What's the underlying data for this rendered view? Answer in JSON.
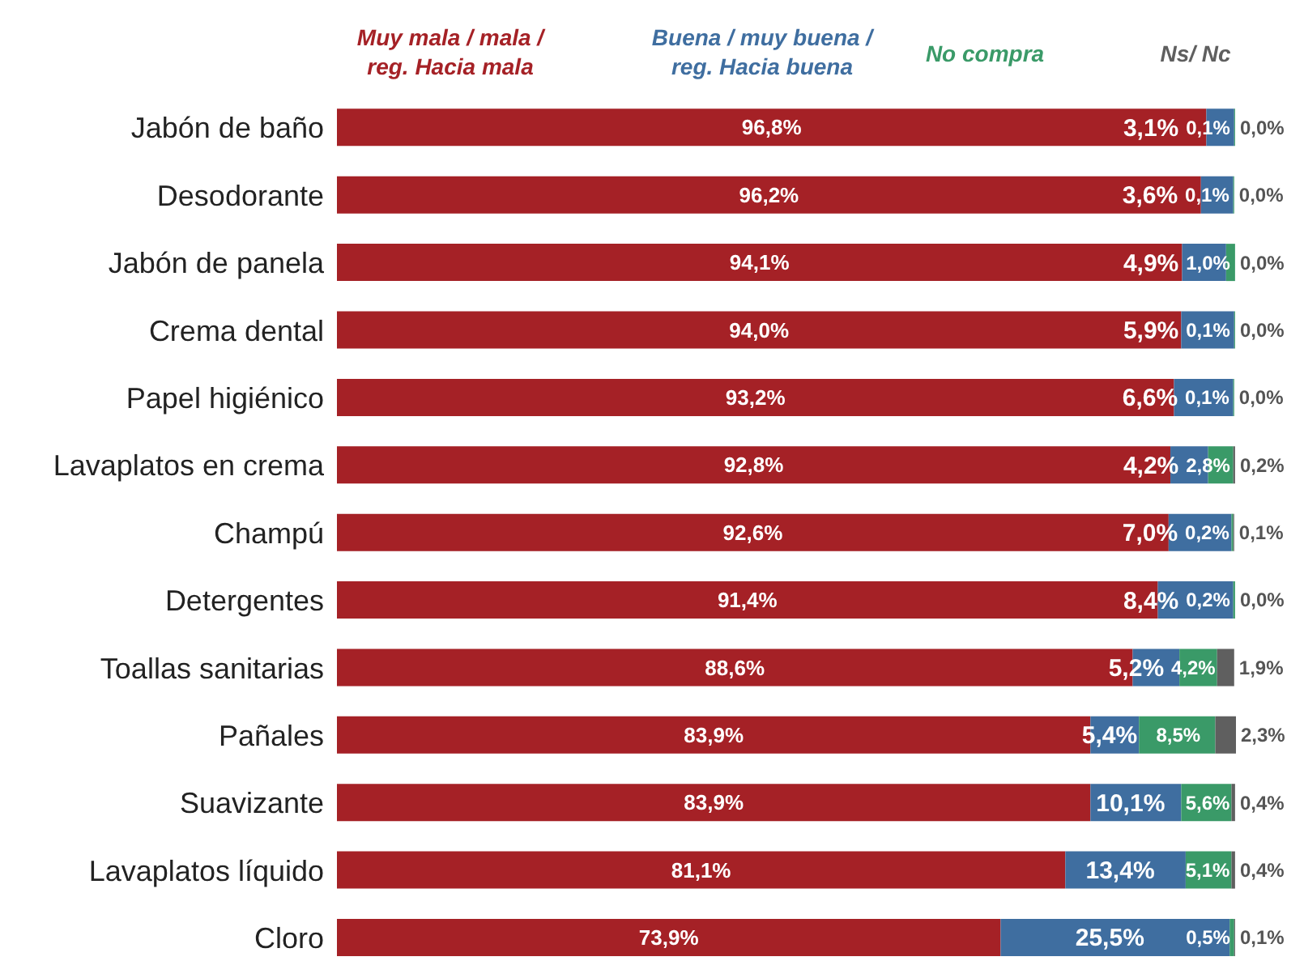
{
  "chart_data": {
    "type": "bar",
    "orientation": "horizontal",
    "stacked": true,
    "legend": "top",
    "tick_labels": "y",
    "categories": [
      "Jabón de baño",
      "Desodorante",
      "Jabón de panela",
      "Crema dental",
      "Papel higiénico",
      "Lavaplatos en crema",
      "Champú",
      "Detergentes",
      "Toallas sanitarias",
      "Pañales",
      "Suavizante",
      "Lavaplatos líquido",
      "Cloro"
    ],
    "series": [
      {
        "name": "Muy mala / mala / reg. Hacia mala",
        "color": "#a52126",
        "values": [
          96.8,
          96.2,
          94.1,
          94.0,
          93.2,
          92.8,
          92.6,
          91.4,
          88.6,
          83.9,
          83.9,
          81.1,
          73.9
        ],
        "value_labels": [
          "96,8%",
          "96,2%",
          "94,1%",
          "94,0%",
          "93,2%",
          "92,8%",
          "92,6%",
          "91,4%",
          "88,6%",
          "83,9%",
          "83,9%",
          "81,1%",
          "73,9%"
        ]
      },
      {
        "name": "Buena / muy buena / reg. Hacia buena",
        "color": "#3f6ea0",
        "values": [
          3.1,
          3.6,
          4.9,
          5.9,
          6.6,
          4.2,
          7.0,
          8.4,
          5.2,
          5.4,
          10.1,
          13.4,
          25.5
        ],
        "value_labels": [
          "3,1%",
          "3,6%",
          "4,9%",
          "5,9%",
          "6,6%",
          "4,2%",
          "7,0%",
          "8,4%",
          "5,2%",
          "5,4%",
          "10,1%",
          "13,4%",
          "25,5%"
        ]
      },
      {
        "name": "No compra",
        "color": "#3a9a68",
        "values": [
          0.1,
          0.1,
          1.0,
          0.1,
          0.1,
          2.8,
          0.2,
          0.2,
          4.2,
          8.5,
          5.6,
          5.1,
          0.5
        ],
        "value_labels": [
          "0,1%",
          "0,1%",
          "1,0%",
          "0,1%",
          "0,1%",
          "2,8%",
          "0,2%",
          "0,2%",
          "4,2%",
          "8,5%",
          "5,6%",
          "5,1%",
          "0,5%"
        ]
      },
      {
        "name": "Ns/ Nc",
        "color": "#5f5f5f",
        "values": [
          0.0,
          0.0,
          0.0,
          0.0,
          0.0,
          0.2,
          0.1,
          0.0,
          1.9,
          2.3,
          0.4,
          0.4,
          0.1
        ],
        "value_labels": [
          "0,0%",
          "0,0%",
          "0,0%",
          "0,0%",
          "0,0%",
          "0,2%",
          "0,1%",
          "0,0%",
          "1,9%",
          "2,3%",
          "0,4%",
          "0,4%",
          "0,1%"
        ]
      }
    ]
  }
}
